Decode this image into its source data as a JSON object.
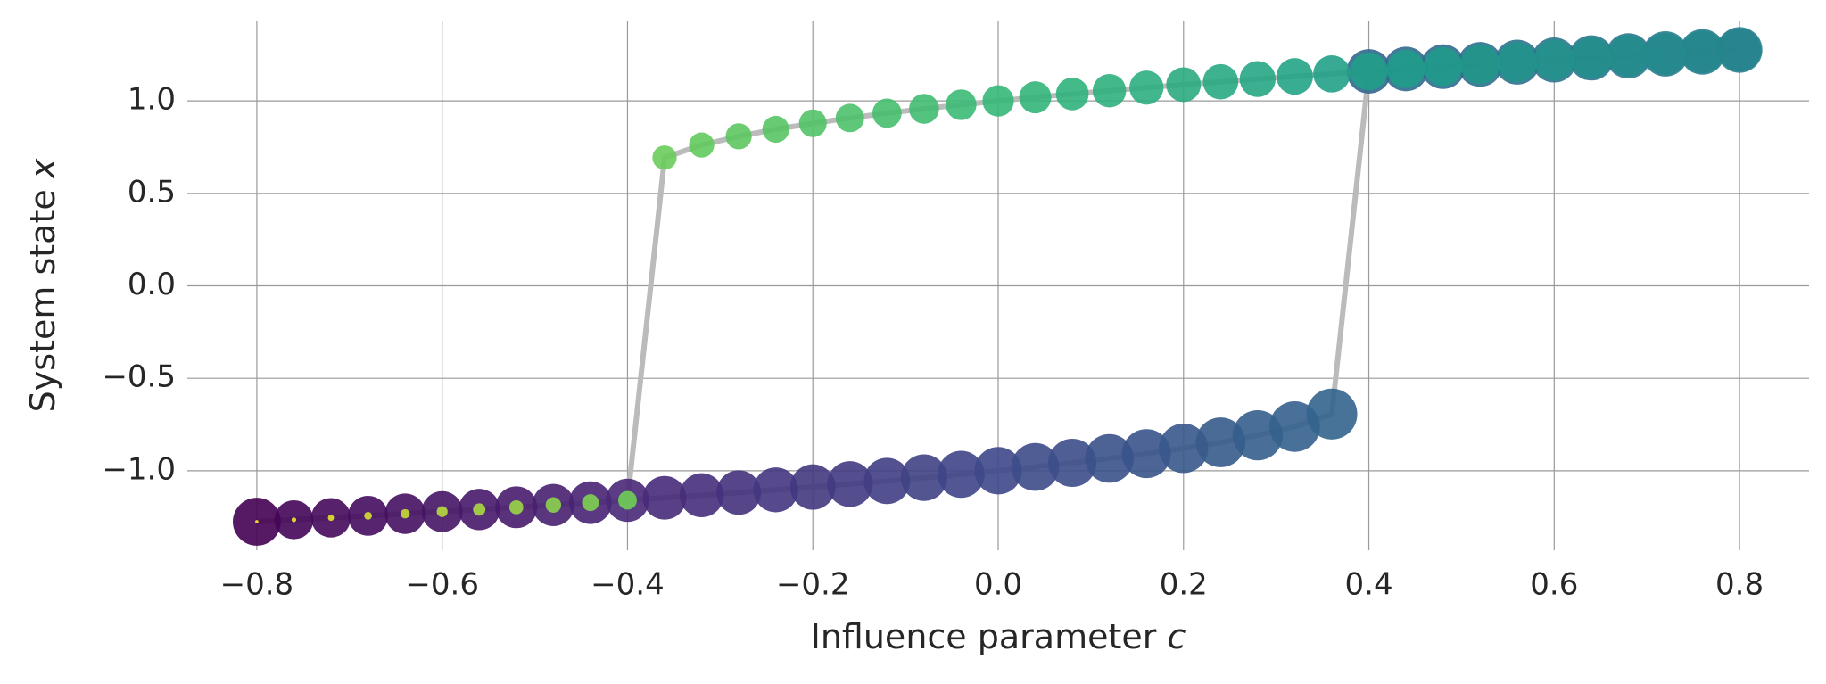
{
  "chart_data": {
    "type": "scatter",
    "xlabel": "Influence parameter c",
    "ylabel": "System state x",
    "xlim": [
      -0.875,
      0.875
    ],
    "ylim": [
      -1.43,
      1.43
    ],
    "xticks": [
      {
        "value": -0.8,
        "label": "−0.8"
      },
      {
        "value": -0.6,
        "label": "−0.6"
      },
      {
        "value": -0.4,
        "label": "−0.4"
      },
      {
        "value": -0.2,
        "label": "−0.2"
      },
      {
        "value": 0,
        "label": "0.0"
      },
      0.2,
      0.4,
      0.6,
      0.8
    ],
    "yticks": [
      {
        "value": -1,
        "label": "−1.0"
      },
      {
        "value": -0.5,
        "label": "−0.5"
      },
      {
        "value": 0,
        "label": "0.0"
      },
      0.5,
      {
        "value": 1,
        "label": "1.0"
      }
    ],
    "grid": true,
    "line_color": "#bbbbbb",
    "colormap": "viridis",
    "series": [
      {
        "x": [
          -0.8,
          -0.76,
          -0.72,
          -0.68,
          -0.64,
          -0.6,
          -0.56,
          -0.52,
          -0.48,
          -0.44,
          -0.4,
          -0.36,
          -0.32,
          -0.28,
          -0.24,
          -0.2,
          -0.16,
          -0.12,
          -0.08,
          -0.04,
          0.0,
          0.04,
          0.08,
          0.12,
          0.16,
          0.2,
          0.24,
          0.28,
          0.32,
          0.36,
          0.4,
          0.44,
          0.48,
          0.52,
          0.56,
          0.6,
          0.64,
          0.68,
          0.72,
          0.76,
          0.8
        ],
        "values": [
          -1.2756,
          -1.2652,
          -1.2545,
          -1.2437,
          -1.2326,
          -1.2212,
          -1.2096,
          -1.1976,
          -1.1853,
          -1.1727,
          -1.1597,
          -1.1463,
          -1.1325,
          -1.1182,
          -1.1034,
          -1.088,
          -1.072,
          -1.0553,
          -1.0378,
          -1.0194,
          -1.0,
          -0.9794,
          -0.9573,
          -0.9335,
          -0.9076,
          -0.8789,
          -0.8464,
          -0.8085,
          -0.7614,
          -0.6935,
          1.1597,
          1.1727,
          1.1853,
          1.1976,
          1.2096,
          1.2212,
          1.2326,
          1.2437,
          1.2545,
          1.2652,
          1.2756
        ],
        "sizes": [
          420,
          277,
          284,
          291,
          298,
          305,
          312,
          319,
          326,
          333,
          340,
          347,
          354,
          361,
          368,
          375,
          382,
          389,
          396,
          403,
          410,
          417,
          424,
          431,
          438,
          445,
          452,
          459,
          466,
          473,
          360,
          362,
          364,
          366,
          368,
          370,
          372,
          374,
          376,
          378,
          380
        ]
      },
      {
        "x": [
          0.8,
          0.76,
          0.72,
          0.68,
          0.64,
          0.6,
          0.56,
          0.52,
          0.48,
          0.44,
          0.4,
          0.36,
          0.32,
          0.28,
          0.24,
          0.2,
          0.16,
          0.12,
          0.08,
          0.04,
          0.0,
          -0.04,
          -0.08,
          -0.12,
          -0.16,
          -0.2,
          -0.24,
          -0.28,
          -0.32,
          -0.36,
          -0.4,
          -0.44,
          -0.48,
          -0.52,
          -0.56,
          -0.6,
          -0.64,
          -0.68,
          -0.72,
          -0.76,
          -0.8
        ],
        "values": [
          1.2756,
          1.2652,
          1.2545,
          1.2437,
          1.2326,
          1.2212,
          1.2096,
          1.1976,
          1.1853,
          1.1727,
          1.1597,
          1.1463,
          1.1325,
          1.1182,
          1.1034,
          1.088,
          1.072,
          1.0553,
          1.0378,
          1.0194,
          1.0,
          0.9794,
          0.9573,
          0.9335,
          0.9076,
          0.8789,
          0.8464,
          0.8085,
          0.7614,
          0.6935,
          -1.1597,
          -1.1727,
          -1.1853,
          -1.1976,
          -1.2096,
          -1.2212,
          -1.2326,
          -1.2437,
          -1.2545,
          -1.2652,
          -1.2756
        ],
        "sizes": [
          340,
          332,
          324,
          316,
          308,
          300,
          292,
          284,
          276,
          268,
          260,
          252,
          244,
          236,
          228,
          220,
          212,
          204,
          196,
          188,
          180,
          172,
          164,
          156,
          148,
          140,
          132,
          124,
          116,
          108,
          64,
          52,
          44,
          36,
          28,
          22,
          16,
          11,
          7,
          4,
          2
        ]
      }
    ]
  }
}
